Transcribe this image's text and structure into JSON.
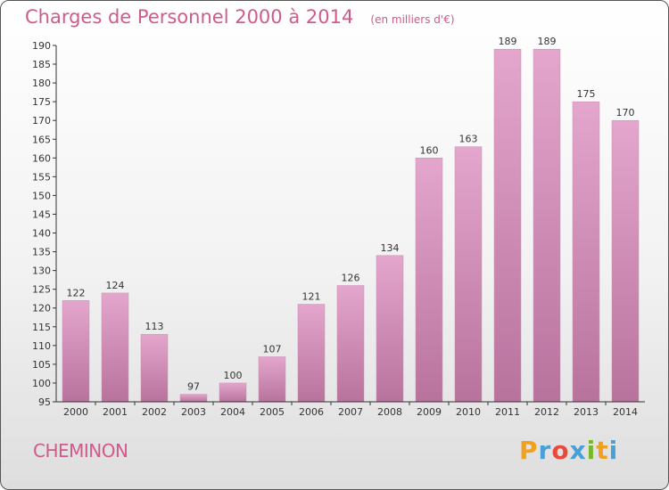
{
  "header": {
    "title": "Charges de Personnel 2000 à 2014",
    "subtitle": "(en milliers d'€)"
  },
  "footer": {
    "commune": "CHEMINON",
    "brand": "Proxiti",
    "brand_letters": [
      "P",
      "r",
      "o",
      "x",
      "i",
      "t",
      "i"
    ],
    "brand_colors": [
      "#f0a21e",
      "#4a9fd6",
      "#e84b3c",
      "#4a9fd6",
      "#77b82a",
      "#f0a21e",
      "#4a9fd6"
    ]
  },
  "colors": {
    "title": "#d05a8c",
    "bar_top": "#e4a6cc",
    "bar_bottom": "#b8739d"
  },
  "chart_data": {
    "type": "bar",
    "title": "Charges de Personnel 2000 à 2014",
    "subtitle": "(en milliers d'€)",
    "xlabel": "",
    "ylabel": "",
    "ylim": [
      95,
      190
    ],
    "ytick_step": 5,
    "grid": false,
    "categories": [
      "2000",
      "2001",
      "2002",
      "2003",
      "2004",
      "2005",
      "2006",
      "2007",
      "2008",
      "2009",
      "2010",
      "2011",
      "2012",
      "2013",
      "2014"
    ],
    "values": [
      122,
      124,
      113,
      97,
      100,
      107,
      121,
      126,
      134,
      160,
      163,
      189,
      189,
      175,
      170
    ]
  }
}
